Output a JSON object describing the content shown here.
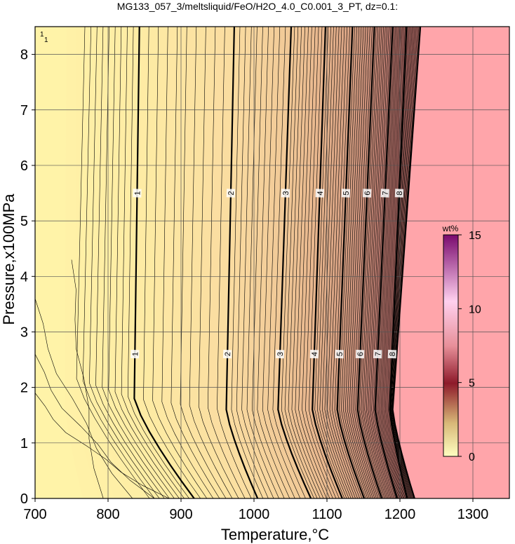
{
  "chart_data": {
    "type": "contour",
    "title": "MG133_057_3/meltsliquid/FeO/H2O_4.0_C0.001_3_PT, dz=0.1:",
    "xlabel": "Temperature,°C",
    "ylabel": "Pressure,x100MPa",
    "xlim": [
      700,
      1350
    ],
    "ylim": [
      0,
      8.5
    ],
    "x_ticks": [
      "700",
      "800",
      "900",
      "1000",
      "1100",
      "1200",
      "1300"
    ],
    "y_ticks": [
      "0",
      "1",
      "2",
      "3",
      "4",
      "5",
      "6",
      "7",
      "8"
    ],
    "grid": true,
    "colorbar": {
      "title": "wt%",
      "range": [
        0,
        15
      ],
      "ticks": [
        "0",
        "5",
        "10",
        "15"
      ],
      "colors": [
        "#ffffc0",
        "#c4a060",
        "#8e1a2a",
        "#ffd0ee",
        "#7a0a6e"
      ]
    },
    "liquidus_region_color": "#ffa5aa",
    "background_color": "#fff3a8",
    "contour_interval": 0.1,
    "labeled_contours": [
      {
        "level": 1,
        "T_high": 843,
        "T_knee": 836,
        "P_knee": 1.8,
        "T_zero": 918,
        "labels": [
          "1",
          "1"
        ]
      },
      {
        "level": 2,
        "T_high": 973,
        "T_knee": 962,
        "P_knee": 1.6,
        "T_zero": 1005,
        "labels": [
          "2",
          "2"
        ]
      },
      {
        "level": 3,
        "T_high": 1051,
        "T_knee": 1033,
        "P_knee": 1.6,
        "T_zero": 1078,
        "labels": [
          "3",
          "3"
        ]
      },
      {
        "level": 4,
        "T_high": 1098,
        "T_knee": 1080,
        "P_knee": 1.6,
        "T_zero": 1121,
        "labels": [
          "4",
          "4"
        ]
      },
      {
        "level": 5,
        "T_high": 1135,
        "T_knee": 1114,
        "P_knee": 1.6,
        "T_zero": 1151,
        "labels": [
          "5",
          "5"
        ]
      },
      {
        "level": 6,
        "T_high": 1165,
        "T_knee": 1142,
        "P_knee": 1.6,
        "T_zero": 1175,
        "labels": [
          "6",
          "6"
        ]
      },
      {
        "level": 7,
        "T_high": 1190,
        "T_knee": 1166,
        "P_knee": 1.6,
        "T_zero": 1196,
        "labels": [
          "7",
          "7"
        ]
      },
      {
        "level": 8,
        "T_high": 1209,
        "T_knee": 1186,
        "P_knee": 1.6,
        "T_zero": 1210,
        "labels": [
          "8",
          "8"
        ]
      }
    ],
    "liquidus_boundary": {
      "T_high": 1228,
      "T_knee": 1190,
      "P_knee": 1.6,
      "T_zero": 1220
    },
    "low_temperature_contours": [
      {
        "T_top": 750,
        "P_top": 4.3,
        "T_zero": 790
      },
      {
        "T_top": 700,
        "P_top": 3.6,
        "T_zero": 830
      },
      {
        "T_top": 700,
        "P_top": 2.6,
        "T_zero": 860
      },
      {
        "T_top": 700,
        "P_top": 1.9,
        "T_zero": 880
      }
    ],
    "corner_labels": [
      "1",
      "1"
    ]
  }
}
